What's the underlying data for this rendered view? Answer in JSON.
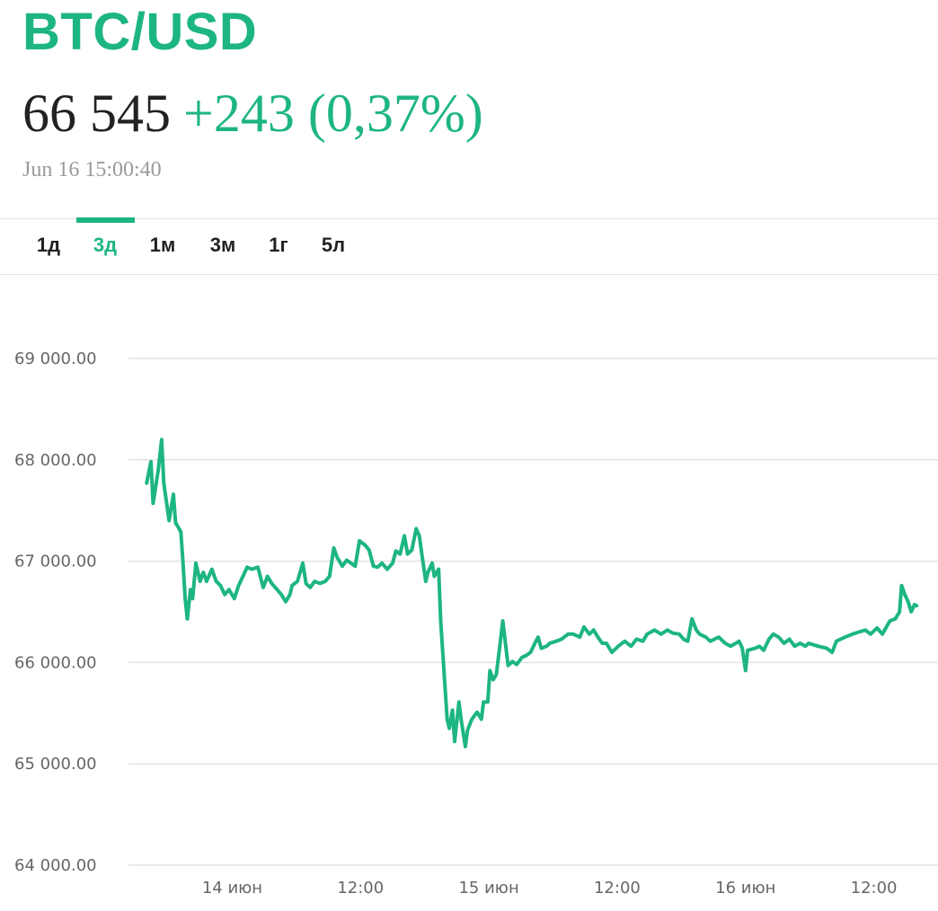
{
  "header": {
    "symbol": "BTC/USD",
    "price": "66 545",
    "change": "+243 (0,37%)",
    "timestamp": "Jun 16 15:00:40"
  },
  "tabs": {
    "items": [
      "1д",
      "3д",
      "1м",
      "3м",
      "1г",
      "5л"
    ],
    "active_index": 1
  },
  "chart_data": {
    "type": "line",
    "color": "#1db583",
    "x": [
      -8.0,
      -7.6,
      -7.4,
      -7.1,
      -6.9,
      -6.6,
      -6.4,
      -6.1,
      -5.9,
      -5.5,
      -5.3,
      -4.8,
      -4.6,
      -4.4,
      -4.2,
      -3.9,
      -3.7,
      -3.4,
      -3.0,
      -2.7,
      -2.4,
      -1.9,
      -1.5,
      -1.1,
      -0.7,
      -0.3,
      0.2,
      0.6,
      1.0,
      1.4,
      1.8,
      2.4,
      2.9,
      3.3,
      3.7,
      4.2,
      4.6,
      5.0,
      5.4,
      5.6,
      6.1,
      6.6,
      6.9,
      7.3,
      7.7,
      8.2,
      8.7,
      9.1,
      9.5,
      9.8,
      10.3,
      10.7,
      11.1,
      11.5,
      11.9,
      12.4,
      12.8,
      13.2,
      13.6,
      14.0,
      14.5,
      15.0,
      15.3,
      15.7,
      16.1,
      16.4,
      16.8,
      17.2,
      17.5,
      17.8,
      18.1,
      18.3,
      18.7,
      18.9,
      19.3,
      19.5,
      19.8,
      20.1,
      20.3,
      20.6,
      20.8,
      21.2,
      21.4,
      21.8,
      22.0,
      22.4,
      22.9,
      23.3,
      23.5,
      23.9,
      24.1,
      24.4,
      24.7,
      25.0,
      25.3,
      25.5,
      25.8,
      26.2,
      26.6,
      27.1,
      27.5,
      27.9,
      28.3,
      28.6,
      28.9,
      29.4,
      29.7,
      30.3,
      30.8,
      31.4,
      31.9,
      32.5,
      32.9,
      33.4,
      33.8,
      34.2,
      34.6,
      35.0,
      35.5,
      36.1,
      36.7,
      37.3,
      37.8,
      38.4,
      38.8,
      39.5,
      40.1,
      40.7,
      41.2,
      41.8,
      42.2,
      42.6,
      43.0,
      43.4,
      43.7,
      44.3,
      44.7,
      45.1,
      45.5,
      46.1,
      46.6,
      47.1,
      47.4,
      47.7,
      48.0,
      48.2,
      48.9,
      49.3,
      49.7,
      50.2,
      50.6,
      51.1,
      51.6,
      52.1,
      52.6,
      53.1,
      53.6,
      53.9,
      54.8,
      55.6,
      56.1,
      56.5,
      57.3,
      58.0,
      58.6,
      59.2,
      59.7,
      60.3,
      60.8,
      61.5,
      62.0,
      62.4,
      62.6,
      62.9,
      63.2,
      63.5,
      63.8,
      64.0
    ],
    "values": [
      67770,
      67980,
      67570,
      67770,
      67910,
      68200,
      67770,
      67550,
      67400,
      67660,
      67380,
      67290,
      66980,
      66630,
      66430,
      66720,
      66630,
      66980,
      66800,
      66890,
      66800,
      66920,
      66800,
      66760,
      66670,
      66720,
      66630,
      66760,
      66850,
      66940,
      66920,
      66940,
      66740,
      66850,
      66780,
      66720,
      66670,
      66600,
      66670,
      66760,
      66800,
      66980,
      66780,
      66740,
      66800,
      66780,
      66800,
      66850,
      67130,
      67040,
      66950,
      67010,
      66980,
      66950,
      67200,
      67160,
      67110,
      66950,
      66940,
      66980,
      66920,
      66980,
      67100,
      67070,
      67250,
      67070,
      67110,
      67320,
      67250,
      67020,
      66800,
      66890,
      66980,
      66850,
      66920,
      66410,
      65920,
      65440,
      65350,
      65530,
      65220,
      65610,
      65440,
      65170,
      65330,
      65440,
      65510,
      65440,
      65610,
      65610,
      65920,
      65830,
      65880,
      66140,
      66410,
      66230,
      65970,
      66010,
      65980,
      66050,
      66070,
      66100,
      66190,
      66250,
      66140,
      66160,
      66190,
      66210,
      66230,
      66280,
      66280,
      66250,
      66350,
      66280,
      66320,
      66250,
      66190,
      66190,
      66100,
      66160,
      66210,
      66160,
      66230,
      66210,
      66280,
      66320,
      66280,
      66320,
      66290,
      66280,
      66230,
      66210,
      66430,
      66320,
      66280,
      66250,
      66210,
      66230,
      66250,
      66190,
      66160,
      66190,
      66210,
      66140,
      65920,
      66120,
      66140,
      66160,
      66120,
      66230,
      66280,
      66250,
      66190,
      66230,
      66160,
      66190,
      66160,
      66190,
      66160,
      66140,
      66100,
      66210,
      66250,
      66280,
      66300,
      66320,
      66280,
      66340,
      66280,
      66410,
      66430,
      66500,
      66760,
      66670,
      66600,
      66500,
      66570,
      66560
    ],
    "xlim": [
      -9.7,
      66.0
    ],
    "xticks": [
      {
        "value": 0,
        "label": "14 июн"
      },
      {
        "value": 12,
        "label": "12:00"
      },
      {
        "value": 24,
        "label": "15 июн"
      },
      {
        "value": 36,
        "label": "12:00"
      },
      {
        "value": 48,
        "label": "16 июн"
      },
      {
        "value": 60,
        "label": "12:00"
      }
    ],
    "ylim": [
      64000,
      69700
    ],
    "yticks": [
      {
        "value": 64000,
        "label": "64 000.00"
      },
      {
        "value": 65000,
        "label": "65 000.00"
      },
      {
        "value": 66000,
        "label": "66 000.00"
      },
      {
        "value": 67000,
        "label": "67 000.00"
      },
      {
        "value": 68000,
        "label": "68 000.00"
      },
      {
        "value": 69000,
        "label": "69 000.00"
      }
    ],
    "grid": true
  }
}
